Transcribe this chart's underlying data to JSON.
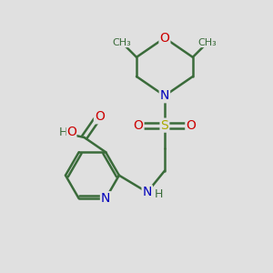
{
  "background_color": "#e0e0e0",
  "bond_color": "#3a6b3a",
  "bond_width": 1.8,
  "atom_colors": {
    "N": "#0000bb",
    "O": "#cc0000",
    "S": "#aaaa00",
    "C": "#3a6b3a",
    "H": "#3a6b3a"
  },
  "font_size_atom": 10,
  "font_size_small": 8
}
